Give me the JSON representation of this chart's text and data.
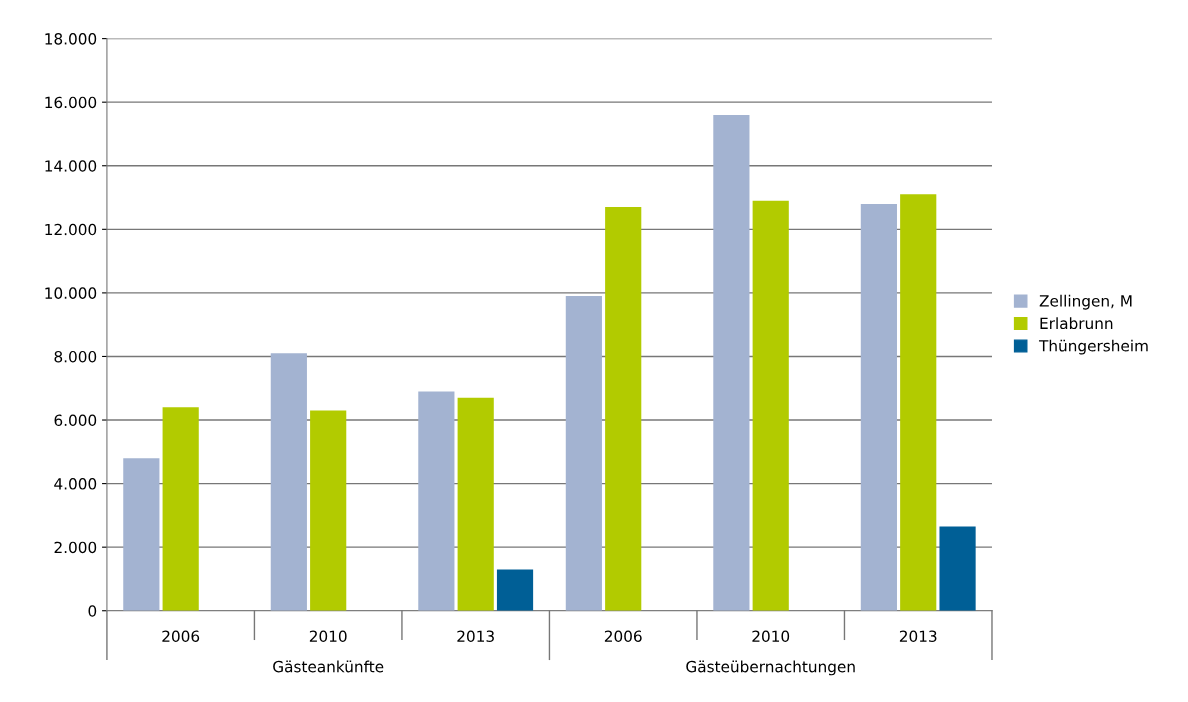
{
  "chart_data": {
    "type": "bar",
    "categories": [
      "2006",
      "2010",
      "2013",
      "2006",
      "2010",
      "2013"
    ],
    "series": [
      {
        "name": "Zellingen, M",
        "color": "#a3b3d1",
        "values": [
          4800,
          8100,
          6900,
          9900,
          15600,
          12800
        ]
      },
      {
        "name": "Erlabrunn",
        "color": "#b2cb00",
        "values": [
          6400,
          6300,
          6700,
          12700,
          12900,
          13100
        ]
      },
      {
        "name": "Thüngersheim",
        "color": "#005f96",
        "values": [
          null,
          null,
          1300,
          null,
          null,
          2650
        ]
      }
    ],
    "ylim": [
      0,
      18000
    ],
    "yticks": [
      {
        "value": 0,
        "label": "0"
      },
      {
        "value": 2000,
        "label": "2.000"
      },
      {
        "value": 4000,
        "label": "4.000"
      },
      {
        "value": 6000,
        "label": "6.000"
      },
      {
        "value": 8000,
        "label": "8.000"
      },
      {
        "value": 10000,
        "label": "10.000"
      },
      {
        "value": 12000,
        "label": "12.000"
      },
      {
        "value": 14000,
        "label": "14.000"
      },
      {
        "value": 16000,
        "label": "16.000"
      },
      {
        "value": 18000,
        "label": "18.000"
      }
    ],
    "annotations": [
      "Gästeankünfte",
      "Gästeübernachtungen"
    ],
    "grid": "y",
    "legend": "right"
  }
}
